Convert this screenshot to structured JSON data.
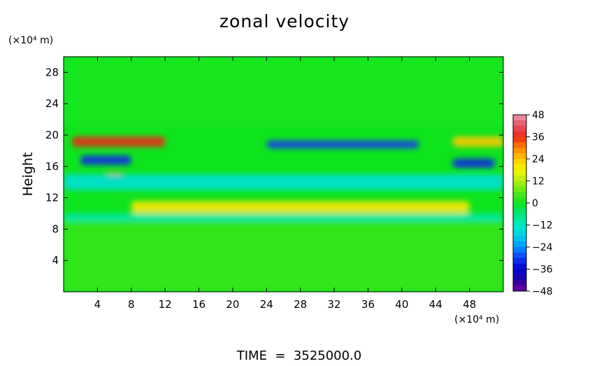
{
  "chart_data": {
    "type": "heatmap",
    "title": "zonal velocity",
    "xlabel": "",
    "ylabel": "Height",
    "x_unit": "(×10⁴ m)",
    "y_unit": "(×10⁴ m)",
    "footer": "TIME  =  3525000.0",
    "xlim": [
      0,
      52
    ],
    "ylim": [
      0,
      30
    ],
    "x_ticks": [
      4,
      8,
      12,
      16,
      20,
      24,
      28,
      32,
      36,
      40,
      44,
      48
    ],
    "y_ticks": [
      4,
      8,
      12,
      16,
      20,
      24,
      28
    ],
    "x_tick_labels": [
      "4",
      "8",
      "12",
      "16",
      "20",
      "24",
      "28",
      "32",
      "36",
      "40",
      "44",
      "48"
    ],
    "y_tick_labels": [
      "4",
      "8",
      "12",
      "16",
      "20",
      "24",
      "28"
    ],
    "colorbar": {
      "range": [
        -48,
        48
      ],
      "tick_values": [
        48,
        36,
        24,
        12,
        0,
        -12,
        -24,
        -36,
        -48
      ],
      "tick_labels": [
        "48",
        "36",
        "24",
        "12",
        "0",
        "−12",
        "−24",
        "−36",
        "−48"
      ]
    },
    "features": [
      {
        "x_range": [
          0,
          52
        ],
        "y_range": [
          21,
          30
        ],
        "value": 1
      },
      {
        "x_range": [
          0,
          52
        ],
        "y_range": [
          0,
          9
        ],
        "value": 3
      },
      {
        "x_range": [
          1,
          12
        ],
        "y_range": [
          18.5,
          19.8
        ],
        "value": 36
      },
      {
        "x_range": [
          46,
          52
        ],
        "y_range": [
          18.5,
          19.8
        ],
        "value": 24
      },
      {
        "x_range": [
          24,
          42
        ],
        "y_range": [
          18.3,
          19.3
        ],
        "value": -30
      },
      {
        "x_range": [
          2,
          8
        ],
        "y_range": [
          16.2,
          17.4
        ],
        "value": -32
      },
      {
        "x_range": [
          46,
          51
        ],
        "y_range": [
          15.8,
          17.0
        ],
        "value": -32
      },
      {
        "x_range": [
          5,
          7
        ],
        "y_range": [
          14.3,
          15.2
        ],
        "value": 30
      },
      {
        "x_range": [
          0,
          52
        ],
        "y_range": [
          13,
          15
        ],
        "value": -15
      },
      {
        "x_range": [
          8,
          48
        ],
        "y_range": [
          10,
          11.6
        ],
        "value": 20
      },
      {
        "x_range": [
          0,
          52
        ],
        "y_range": [
          9,
          10
        ],
        "value": -10
      }
    ]
  }
}
